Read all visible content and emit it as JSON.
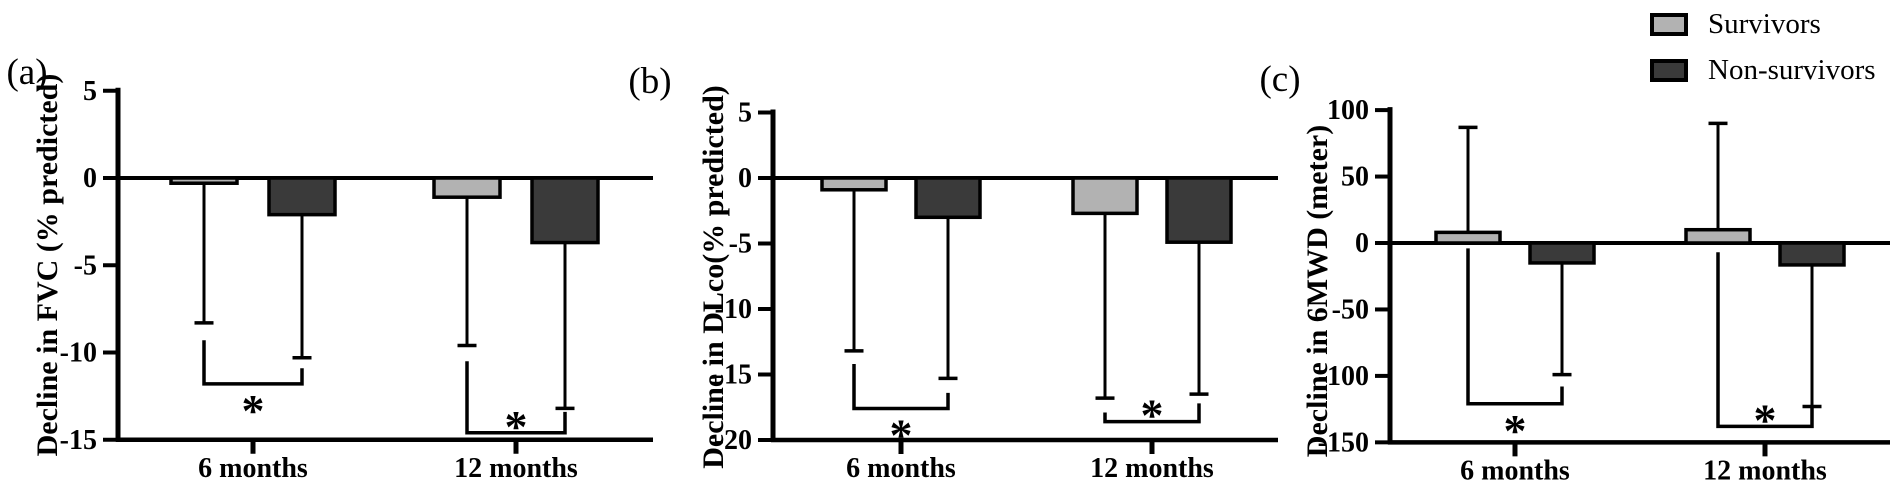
{
  "ink_color": "#000000",
  "background_color": "#ffffff",
  "legend": {
    "position": "top-right",
    "items": [
      {
        "label": "Survivors",
        "swatch_color": "#b2b2b2"
      },
      {
        "label": "Non-survivors",
        "swatch_color": "#3a3a3a"
      }
    ]
  },
  "chart_data": [
    {
      "type": "bar",
      "panel_label": "(a)",
      "title": "",
      "xlabel": "",
      "ylabel": "Decline in FVC (% predicted)",
      "ylim": [
        -15,
        5
      ],
      "yticks": [
        5,
        0,
        -5,
        -10,
        -15
      ],
      "grid": false,
      "categories": [
        "6 months",
        "12 months"
      ],
      "series": [
        {
          "name": "Survivors",
          "color": "#b2b2b2",
          "values": [
            -0.3,
            -1.1
          ],
          "error_to": [
            -8.3,
            -9.6
          ]
        },
        {
          "name": "Non-survivors",
          "color": "#3a3a3a",
          "values": [
            -2.1,
            -3.7
          ],
          "error_to": [
            -10.3,
            -13.2
          ]
        }
      ],
      "significance": [
        {
          "category": "6 months",
          "marker": "*",
          "bracket_level": -11.8,
          "left_arm_top": -9.3,
          "right_arm_top": -10.9,
          "marker_position": "below"
        },
        {
          "category": "12 months",
          "marker": "*",
          "bracket_level": -14.6,
          "left_arm_top": -10.5,
          "right_arm_top": -13.4,
          "marker_position": "above"
        }
      ]
    },
    {
      "type": "bar",
      "panel_label": "(b)",
      "title": "",
      "xlabel": "",
      "ylabel": "Decline in DLco(% predicted)",
      "ylim": [
        -20,
        5
      ],
      "yticks": [
        5,
        0,
        -5,
        -10,
        -15,
        -20
      ],
      "grid": false,
      "categories": [
        "6 months",
        "12 months"
      ],
      "series": [
        {
          "name": "Survivors",
          "color": "#b2b2b2",
          "values": [
            -0.9,
            -2.7
          ],
          "error_to": [
            -13.2,
            -16.8
          ]
        },
        {
          "name": "Non-survivors",
          "color": "#3a3a3a",
          "values": [
            -3.0,
            -4.9
          ],
          "error_to": [
            -15.3,
            -16.5
          ]
        }
      ],
      "significance": [
        {
          "category": "6 months",
          "marker": "*",
          "bracket_level": -17.6,
          "left_arm_top": -14.2,
          "right_arm_top": -16.4,
          "marker_position": "below"
        },
        {
          "category": "12 months",
          "marker": "*",
          "bracket_level": -18.6,
          "left_arm_top": -17.9,
          "right_arm_top": -17.2,
          "marker_position": "above"
        }
      ]
    },
    {
      "type": "bar",
      "panel_label": "(c)",
      "title": "",
      "xlabel": "",
      "ylabel": "Decline in 6MWD (meter)",
      "ylim": [
        -150,
        100
      ],
      "yticks": [
        100,
        50,
        0,
        -50,
        -100,
        -150
      ],
      "grid": false,
      "categories": [
        "6 months",
        "12 months"
      ],
      "series": [
        {
          "name": "Survivors",
          "color": "#b2b2b2",
          "values": [
            8,
            10
          ],
          "error_to": [
            87,
            90
          ]
        },
        {
          "name": "Non-survivors",
          "color": "#3a3a3a",
          "values": [
            -15,
            -16.5
          ],
          "error_to": [
            -99,
            -123
          ]
        }
      ],
      "significance": [
        {
          "category": "6 months",
          "marker": "*",
          "bracket_level": -121,
          "left_arm_top": -4,
          "right_arm_top": -108,
          "marker_position": "below"
        },
        {
          "category": "12 months",
          "marker": "*",
          "bracket_level": -138,
          "left_arm_top": -7,
          "right_arm_top": -123,
          "marker_position": "above"
        }
      ]
    }
  ]
}
